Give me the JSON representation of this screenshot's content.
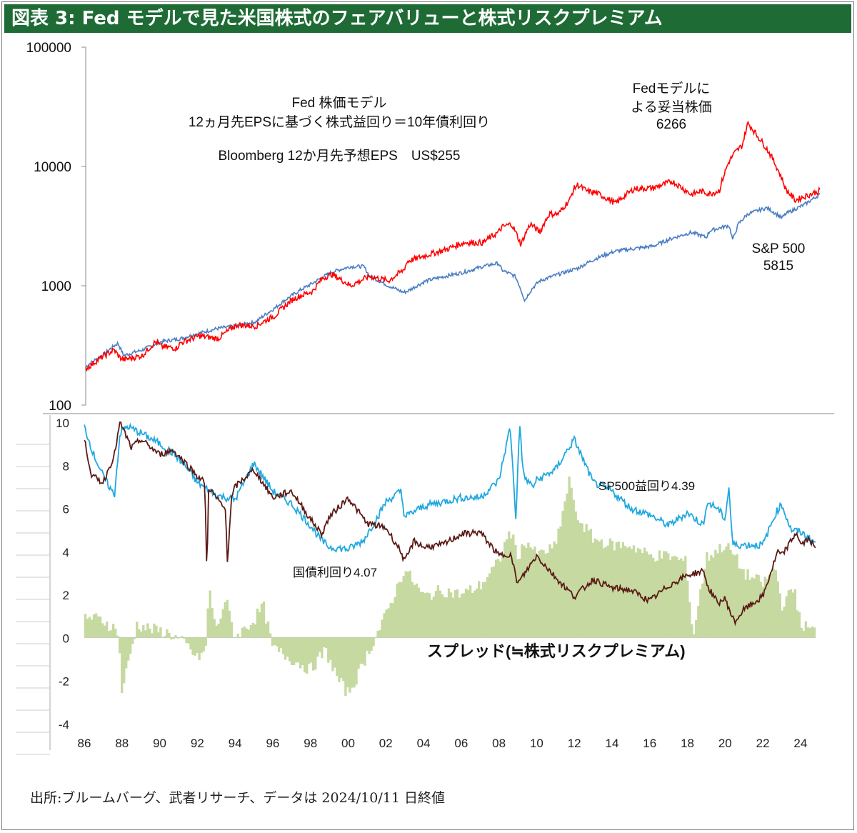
{
  "header": {
    "title": "図表 3: Fed モデルで見た米国株式のフェアバリューと株式リスクプレミアム"
  },
  "footer": {
    "source": "出所:ブルームバーグ、武者リサーチ、データは 2024/10/11 日終値"
  },
  "colors": {
    "title_bg": "#1e6b35",
    "fed_model_line": "#ff0000",
    "sp500_line": "#4a7ec2",
    "earnings_yield_line": "#1fa8e0",
    "bond_yield_line": "#5a1a16",
    "spread_area": "#c6d9a0"
  },
  "chart_data": [
    {
      "type": "line",
      "yscale": "log",
      "ylim": [
        100,
        100000
      ],
      "y_ticks": [
        "100000",
        "10000",
        "1000",
        "100"
      ],
      "x_range": [
        1986,
        2024.8
      ],
      "annotations": {
        "main_line1": "Fed 株価モデル",
        "main_line2": "12ヵ月先EPSに基づく株式益回り＝10年債利回り",
        "main_line3": "Bloomberg 12か月先予想EPS　US$255",
        "fed_label_line1": "Fedモデルに",
        "fed_label_line2": "よる妥当株価",
        "fed_label_value": "6266",
        "sp_label_line1": "S&P 500",
        "sp_label_value": "5815"
      },
      "series": [
        {
          "x": [
            1986,
            1987.5,
            1987.8,
            1988,
            1989,
            1989.7,
            1990,
            1990.8,
            1991,
            1992,
            1993,
            1994,
            1995,
            1996,
            1997,
            1998,
            1998.5,
            1999,
            2000,
            2001,
            2002,
            2002.8,
            2003,
            2004,
            2005,
            2006,
            2007,
            2007.8,
            2008,
            2008.5,
            2009,
            2009.5,
            2010,
            2010.5,
            2011,
            2011.6,
            2011.8,
            2012,
            2012.5,
            2013,
            2014,
            2015,
            2016,
            2017,
            2018,
            2018.5,
            2019,
            2019.5,
            2020,
            2020.3,
            2020.7,
            2021,
            2021.5,
            2022,
            2022.5,
            2023,
            2023.5,
            2024,
            2024.8
          ],
          "values": [
            200,
            290,
            250,
            240,
            260,
            340,
            310,
            300,
            330,
            380,
            360,
            470,
            460,
            560,
            780,
            900,
            1150,
            1250,
            1000,
            1200,
            1100,
            1350,
            1600,
            1800,
            2000,
            2300,
            2300,
            2800,
            3100,
            3300,
            2200,
            3300,
            2800,
            4000,
            4000,
            5300,
            6500,
            7000,
            6200,
            6000,
            4900,
            6500,
            6600,
            7500,
            5800,
            6200,
            5900,
            6300,
            11000,
            13000,
            15000,
            23000,
            18000,
            14000,
            10000,
            6400,
            5200,
            5600,
            6266
          ]
        },
        {
          "x": [
            1986,
            1987,
            1987.7,
            1988,
            1989,
            1990,
            1991,
            1992,
            1993,
            1994,
            1995,
            1996,
            1997,
            1998,
            1999,
            2000,
            2000.7,
            2001,
            2002,
            2002.8,
            2003,
            2004,
            2005,
            2006,
            2007,
            2007.8,
            2008,
            2008.7,
            2009.2,
            2009.6,
            2010,
            2011,
            2012,
            2013,
            2014,
            2015,
            2016,
            2017,
            2018,
            2018.8,
            2019,
            2020,
            2020.2,
            2020.5,
            2021,
            2022,
            2022.8,
            2023,
            2024,
            2024.8
          ],
          "values": [
            210,
            270,
            330,
            260,
            290,
            340,
            360,
            400,
            440,
            460,
            500,
            650,
            850,
            1050,
            1300,
            1450,
            1450,
            1200,
            1000,
            880,
            900,
            1100,
            1200,
            1300,
            1450,
            1550,
            1350,
            1200,
            750,
            950,
            1100,
            1250,
            1400,
            1700,
            1950,
            2050,
            2150,
            2500,
            2800,
            2550,
            2900,
            3200,
            2400,
            3300,
            4000,
            4500,
            3700,
            4000,
            4800,
            5815
          ]
        }
      ]
    },
    {
      "type": "line",
      "ylim": [
        -4,
        10
      ],
      "y_ticks": [
        "10",
        "8",
        "6",
        "4",
        "2",
        "0",
        "-2",
        "-4"
      ],
      "x_ticks": [
        "86",
        "88",
        "90",
        "92",
        "94",
        "96",
        "98",
        "00",
        "02",
        "04",
        "06",
        "08",
        "10",
        "12",
        "14",
        "16",
        "18",
        "20",
        "22",
        "24"
      ],
      "annotations": {
        "earnings_yield_label": "SP500益回り4.39",
        "bond_yield_label": "国債利回り4.07",
        "spread_label": "スプレッド(≒株式リスクプレミアム)"
      },
      "series": [
        {
          "x": [
            1986,
            1986.5,
            1987,
            1987.6,
            1987.9,
            1988.3,
            1989,
            1990,
            1990.8,
            1991.5,
            1992,
            1993,
            1994,
            1995,
            1996,
            1997,
            1998,
            1998.6,
            1999,
            2000,
            2000.8,
            2001.5,
            2002,
            2002.8,
            2003,
            2004,
            2005,
            2006,
            2007,
            2008,
            2008.6,
            2008.9,
            2009.1,
            2009.3,
            2009.8,
            2010,
            2011,
            2011.7,
            2012,
            2013,
            2014,
            2015,
            2016,
            2017,
            2018,
            2018.9,
            2019,
            2019.6,
            2020,
            2020.2,
            2020.4,
            2021,
            2022,
            2022.7,
            2023,
            2023.5,
            2024,
            2024.8
          ],
          "values": [
            9.8,
            8.5,
            7.5,
            6.6,
            9.5,
            9.8,
            9.5,
            9.0,
            8.5,
            7.8,
            7.2,
            6.6,
            6.4,
            8.1,
            6.8,
            6.2,
            5.2,
            4.5,
            4.2,
            4.1,
            4.5,
            5.5,
            6.3,
            6.8,
            5.6,
            6.1,
            6.3,
            6.5,
            6.5,
            7.3,
            9.8,
            5.5,
            10.0,
            7.5,
            7.0,
            7.3,
            7.8,
            8.8,
            9.2,
            7.2,
            6.8,
            6.0,
            5.7,
            5.2,
            5.8,
            5.2,
            6.3,
            6.0,
            5.5,
            7.0,
            4.3,
            4.3,
            4.3,
            5.8,
            6.2,
            5.0,
            4.9,
            4.39
          ]
        },
        {
          "x": [
            1986,
            1986.4,
            1987,
            1987.6,
            1987.9,
            1988.5,
            1989,
            1990,
            1990.7,
            1991.5,
            1992,
            1992.4,
            1992.5,
            1992.6,
            1993,
            1993.5,
            1993.6,
            1993.8,
            1994,
            1995,
            1996,
            1997,
            1998,
            1998.6,
            1999,
            2000,
            2001,
            2002,
            2002.8,
            2003,
            2003.5,
            2004,
            2005,
            2006,
            2007,
            2008,
            2008.6,
            2009,
            2010,
            2011,
            2012,
            2013,
            2014,
            2015,
            2016,
            2017,
            2018,
            2018.9,
            2019,
            2019.6,
            2020,
            2020.5,
            2021,
            2022,
            2022.8,
            2023,
            2023.8,
            2024,
            2024.5,
            2024.8
          ],
          "values": [
            9.2,
            7.5,
            7.2,
            8.5,
            10.0,
            8.8,
            9.2,
            8.5,
            8.7,
            8.0,
            7.5,
            7.2,
            2.8,
            7.0,
            6.5,
            5.9,
            3.5,
            6.4,
            7.0,
            7.8,
            6.5,
            6.8,
            5.5,
            4.8,
            5.6,
            6.5,
            5.3,
            5.1,
            4.0,
            3.5,
            4.5,
            4.2,
            4.3,
            4.8,
            4.9,
            3.8,
            3.9,
            2.5,
            3.8,
            2.8,
            1.9,
            2.7,
            2.3,
            2.2,
            1.7,
            2.4,
            2.9,
            3.1,
            2.5,
            1.6,
            1.8,
            0.7,
            1.3,
            1.9,
            4.0,
            3.8,
            4.9,
            4.3,
            4.6,
            4.07
          ]
        },
        {
          "name": "スプレッド(≒株式リスクプレミアム)",
          "x": [
            1986,
            1987,
            1987.8,
            1988,
            1988.8,
            1989.5,
            1990.5,
            1991.5,
            1992,
            1992.5,
            1992.6,
            1993,
            1993.5,
            1994,
            1995,
            1995.5,
            1996,
            1997,
            1998,
            1998.8,
            1999.5,
            2000,
            2000.5,
            2001,
            2002,
            2003,
            2004,
            2005,
            2006,
            2007,
            2008,
            2008.6,
            2009,
            2009.5,
            2010,
            2011,
            2011.8,
            2012,
            2013,
            2014,
            2015,
            2016,
            2017,
            2017.9,
            2018,
            2018.3,
            2019,
            2020,
            2020.5,
            2021,
            2022,
            2022.7,
            2023,
            2023.7,
            2024,
            2024.8
          ],
          "values": [
            1.0,
            0.8,
            0.3,
            -2.5,
            0.6,
            0.4,
            0.2,
            -0.4,
            -1.0,
            -0.5,
            2.5,
            0.3,
            1.8,
            0.0,
            0.8,
            1.5,
            -0.5,
            -1.0,
            -1.5,
            -0.6,
            -2.0,
            -2.6,
            -1.8,
            -0.8,
            1.0,
            3.2,
            1.9,
            2.2,
            2.0,
            2.4,
            3.5,
            5.0,
            3.8,
            4.5,
            3.8,
            4.2,
            7.5,
            5.8,
            4.6,
            4.3,
            4.3,
            3.8,
            3.8,
            3.5,
            3.0,
            0.0,
            3.7,
            4.3,
            3.8,
            3.0,
            2.5,
            3.2,
            1.5,
            2.3,
            0.6,
            0.32
          ]
        }
      ]
    }
  ]
}
